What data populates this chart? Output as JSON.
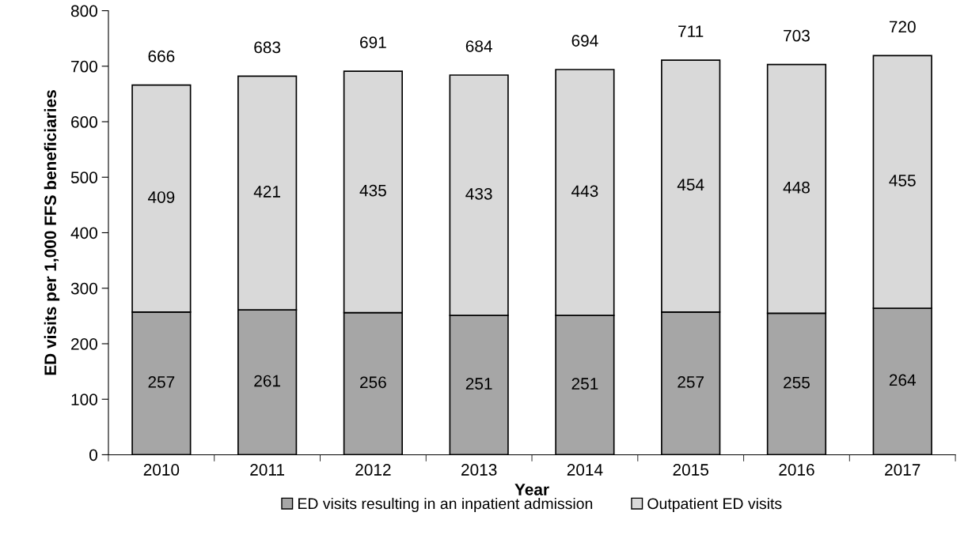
{
  "chart_data": {
    "type": "bar",
    "stacked": true,
    "xlabel": "Year",
    "ylabel": "ED visits per 1,000 FFS beneficiaries",
    "categories": [
      "2010",
      "2011",
      "2012",
      "2013",
      "2014",
      "2015",
      "2016",
      "2017"
    ],
    "series": [
      {
        "name": "ED visits resulting in an inpatient admission",
        "color": "#a6a6a6",
        "values": [
          257,
          261,
          256,
          251,
          251,
          257,
          255,
          264
        ]
      },
      {
        "name": "Outpatient ED visits",
        "color": "#d9d9d9",
        "values": [
          409,
          421,
          435,
          433,
          443,
          454,
          448,
          455
        ]
      }
    ],
    "totals": [
      "666",
      "683",
      "691",
      "684",
      "694",
      "711",
      "703",
      "720"
    ],
    "data_labels": true,
    "ylim": [
      0,
      800
    ],
    "yticks": [
      0,
      100,
      200,
      300,
      400,
      500,
      600,
      700,
      800
    ],
    "grid": false,
    "legend": "bottom"
  }
}
